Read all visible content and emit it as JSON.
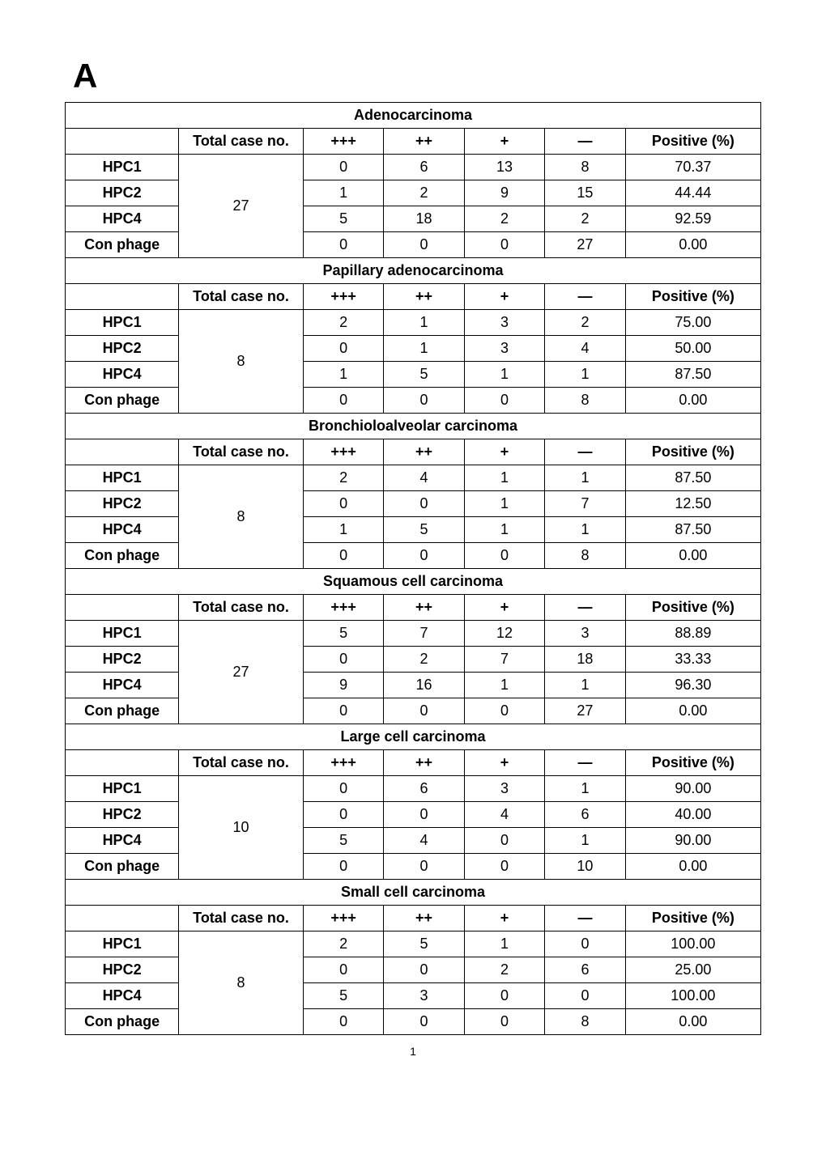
{
  "panel_label": "A",
  "page_number": "1",
  "header_labels": {
    "total_case": "Total case no.",
    "ppp": "+++",
    "pp": "++",
    "p": "+",
    "minus": "—",
    "positive": "Positive (%)"
  },
  "row_labels": {
    "hpc1": "HPC1",
    "hpc2": "HPC2",
    "hpc4": "HPC4",
    "con": "Con phage"
  },
  "sections": [
    {
      "title": "Adenocarcinoma",
      "total_case": "27",
      "rows": {
        "hpc1": {
          "ppp": "0",
          "pp": "6",
          "p": "13",
          "minus": "8",
          "positive": "70.37"
        },
        "hpc2": {
          "ppp": "1",
          "pp": "2",
          "p": "9",
          "minus": "15",
          "positive": "44.44"
        },
        "hpc4": {
          "ppp": "5",
          "pp": "18",
          "p": "2",
          "minus": "2",
          "positive": "92.59"
        },
        "con": {
          "ppp": "0",
          "pp": "0",
          "p": "0",
          "minus": "27",
          "positive": "0.00"
        }
      }
    },
    {
      "title": "Papillary adenocarcinoma",
      "total_case": "8",
      "rows": {
        "hpc1": {
          "ppp": "2",
          "pp": "1",
          "p": "3",
          "minus": "2",
          "positive": "75.00"
        },
        "hpc2": {
          "ppp": "0",
          "pp": "1",
          "p": "3",
          "minus": "4",
          "positive": "50.00"
        },
        "hpc4": {
          "ppp": "1",
          "pp": "5",
          "p": "1",
          "minus": "1",
          "positive": "87.50"
        },
        "con": {
          "ppp": "0",
          "pp": "0",
          "p": "0",
          "minus": "8",
          "positive": "0.00"
        }
      }
    },
    {
      "title": "Bronchioloalveolar carcinoma",
      "total_case": "8",
      "rows": {
        "hpc1": {
          "ppp": "2",
          "pp": "4",
          "p": "1",
          "minus": "1",
          "positive": "87.50"
        },
        "hpc2": {
          "ppp": "0",
          "pp": "0",
          "p": "1",
          "minus": "7",
          "positive": "12.50"
        },
        "hpc4": {
          "ppp": "1",
          "pp": "5",
          "p": "1",
          "minus": "1",
          "positive": "87.50"
        },
        "con": {
          "ppp": "0",
          "pp": "0",
          "p": "0",
          "minus": "8",
          "positive": "0.00"
        }
      }
    },
    {
      "title": "Squamous cell carcinoma",
      "total_case": "27",
      "rows": {
        "hpc1": {
          "ppp": "5",
          "pp": "7",
          "p": "12",
          "minus": "3",
          "positive": "88.89"
        },
        "hpc2": {
          "ppp": "0",
          "pp": "2",
          "p": "7",
          "minus": "18",
          "positive": "33.33"
        },
        "hpc4": {
          "ppp": "9",
          "pp": "16",
          "p": "1",
          "minus": "1",
          "positive": "96.30"
        },
        "con": {
          "ppp": "0",
          "pp": "0",
          "p": "0",
          "minus": "27",
          "positive": "0.00"
        }
      }
    },
    {
      "title": "Large cell carcinoma",
      "total_case": "10",
      "rows": {
        "hpc1": {
          "ppp": "0",
          "pp": "6",
          "p": "3",
          "minus": "1",
          "positive": "90.00"
        },
        "hpc2": {
          "ppp": "0",
          "pp": "0",
          "p": "4",
          "minus": "6",
          "positive": "40.00"
        },
        "hpc4": {
          "ppp": "5",
          "pp": "4",
          "p": "0",
          "minus": "1",
          "positive": "90.00"
        },
        "con": {
          "ppp": "0",
          "pp": "0",
          "p": "0",
          "minus": "10",
          "positive": "0.00"
        }
      }
    },
    {
      "title": "Small cell carcinoma",
      "total_case": "8",
      "rows": {
        "hpc1": {
          "ppp": "2",
          "pp": "5",
          "p": "1",
          "minus": "0",
          "positive": "100.00"
        },
        "hpc2": {
          "ppp": "0",
          "pp": "0",
          "p": "2",
          "minus": "6",
          "positive": "25.00"
        },
        "hpc4": {
          "ppp": "5",
          "pp": "3",
          "p": "0",
          "minus": "0",
          "positive": "100.00"
        },
        "con": {
          "ppp": "0",
          "pp": "0",
          "p": "0",
          "minus": "8",
          "positive": "0.00"
        }
      }
    }
  ],
  "styling": {
    "border_color": "#000000",
    "background_color": "#ffffff",
    "text_color": "#000000",
    "font_family": "Arial",
    "section_title_fontsize_pt": 15,
    "cell_fontsize_pt": 13.5,
    "panel_label_fontsize_pt": 32
  }
}
